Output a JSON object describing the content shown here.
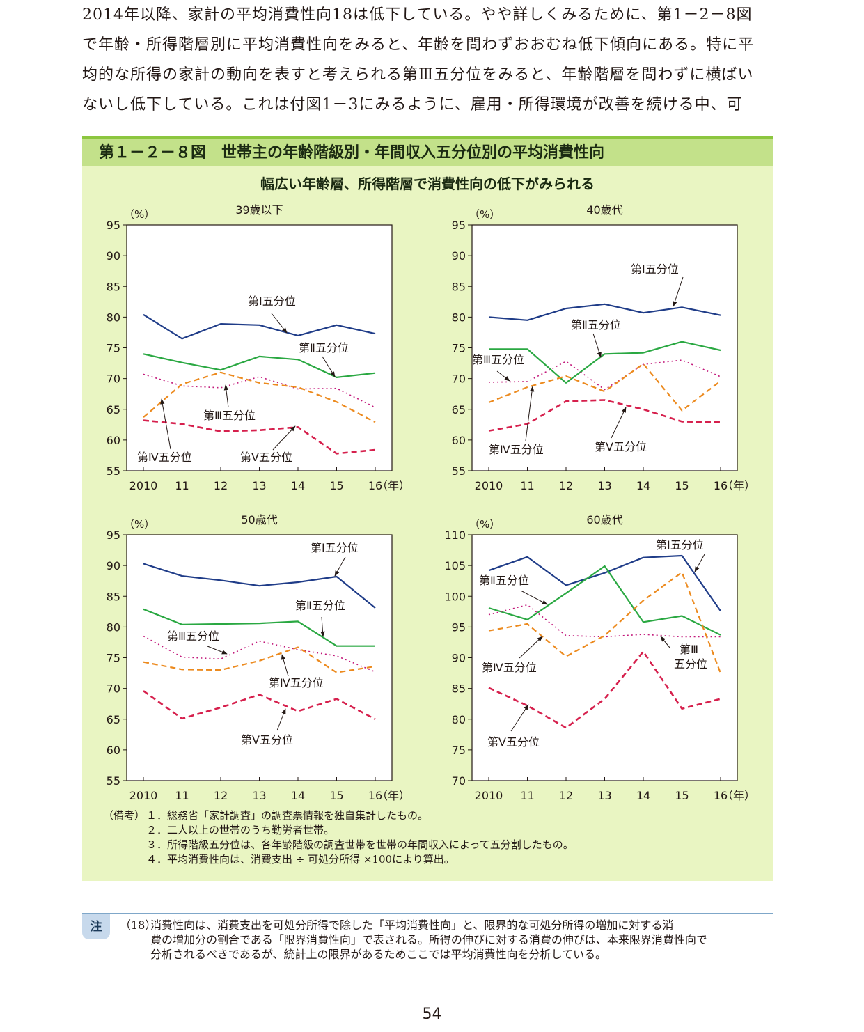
{
  "intro": {
    "lines": [
      "2014年以降、家計の平均消費性向18は低下している。やや詳しくみるために、第1－2－8図",
      "で年齢・所得階層別に平均消費性向をみると、年齢を問わずおおむね低下傾向にある。特に平",
      "均的な所得の家計の動向を表すと考えられる第Ⅲ五分位をみると、年齢階層を問わずに横ばい",
      "ないし低下している。これは付図1－3にみるように、雇用・所得環境が改善を続ける中、可"
    ]
  },
  "figure": {
    "title": "第１－２－８図　世帯主の年齢階級別・年間収入五分位別の平均消費性向",
    "subtitle": "幅広い年齢層、所得階層で消費性向の低下がみられる"
  },
  "colors": {
    "q1": "#1f3c88",
    "q2": "#2aa842",
    "q3": "#c2187a",
    "q4": "#ec8a1e",
    "q5": "#d6204d"
  },
  "chart_data": [
    {
      "type": "line",
      "title": "39歳以下",
      "ylabel": "（%）",
      "xlabel": "（年）",
      "categories": [
        "2010",
        "11",
        "12",
        "13",
        "14",
        "15",
        "16"
      ],
      "ylim": [
        55,
        95
      ],
      "yticks": [
        55,
        60,
        65,
        70,
        75,
        80,
        85,
        90,
        95
      ],
      "series": [
        {
          "name": "第Ⅰ五分位",
          "values": [
            80.4,
            76.5,
            78.9,
            78.7,
            77.0,
            78.7,
            77.3
          ]
        },
        {
          "name": "第Ⅱ五分位",
          "values": [
            74.0,
            72.6,
            71.4,
            73.6,
            73.1,
            70.2,
            70.9
          ]
        },
        {
          "name": "第Ⅲ五分位",
          "values": [
            70.7,
            68.8,
            68.5,
            70.3,
            68.3,
            68.4,
            65.3
          ]
        },
        {
          "name": "第Ⅳ五分位",
          "values": [
            63.7,
            69.1,
            71.0,
            69.3,
            68.6,
            66.2,
            62.9
          ]
        },
        {
          "name": "第Ⅴ五分位",
          "values": [
            63.2,
            62.6,
            61.4,
            61.6,
            62.1,
            57.8,
            58.4
          ]
        }
      ]
    },
    {
      "type": "line",
      "title": "40歳代",
      "ylabel": "（%）",
      "xlabel": "（年）",
      "categories": [
        "2010",
        "11",
        "12",
        "13",
        "14",
        "15",
        "16"
      ],
      "ylim": [
        55,
        95
      ],
      "yticks": [
        55,
        60,
        65,
        70,
        75,
        80,
        85,
        90,
        95
      ],
      "series": [
        {
          "name": "第Ⅰ五分位",
          "values": [
            80.0,
            79.5,
            81.4,
            82.1,
            80.7,
            81.6,
            80.3
          ]
        },
        {
          "name": "第Ⅱ五分位",
          "values": [
            74.8,
            74.8,
            69.3,
            74.0,
            74.2,
            76.0,
            74.6
          ]
        },
        {
          "name": "第Ⅲ五分位",
          "values": [
            69.4,
            69.5,
            72.8,
            68.2,
            72.3,
            73.0,
            70.3
          ]
        },
        {
          "name": "第Ⅳ五分位",
          "values": [
            66.1,
            68.6,
            70.4,
            67.9,
            72.4,
            64.8,
            69.6
          ]
        },
        {
          "name": "第Ⅴ五分位",
          "values": [
            61.5,
            62.6,
            66.3,
            66.5,
            65.0,
            63.0,
            62.9
          ]
        }
      ]
    },
    {
      "type": "line",
      "title": "50歳代",
      "ylabel": "（%）",
      "xlabel": "（年）",
      "categories": [
        "2010",
        "11",
        "12",
        "13",
        "14",
        "15",
        "16"
      ],
      "ylim": [
        55,
        95
      ],
      "yticks": [
        55,
        60,
        65,
        70,
        75,
        80,
        85,
        90,
        95
      ],
      "series": [
        {
          "name": "第Ⅰ五分位",
          "values": [
            90.3,
            88.3,
            87.6,
            86.7,
            87.3,
            88.2,
            83.1
          ]
        },
        {
          "name": "第Ⅱ五分位",
          "values": [
            82.9,
            80.4,
            80.5,
            80.6,
            80.9,
            76.9,
            76.9
          ]
        },
        {
          "name": "第Ⅲ五分位",
          "values": [
            78.5,
            75.1,
            74.8,
            77.7,
            76.3,
            75.3,
            72.7
          ]
        },
        {
          "name": "第Ⅳ五分位",
          "values": [
            74.3,
            73.1,
            73.0,
            74.5,
            76.7,
            72.6,
            73.6
          ]
        },
        {
          "name": "第Ⅴ五分位",
          "values": [
            69.6,
            65.1,
            66.9,
            69.0,
            66.3,
            68.3,
            65.0
          ]
        }
      ]
    },
    {
      "type": "line",
      "title": "60歳代",
      "ylabel": "（%）",
      "xlabel": "（年）",
      "categories": [
        "2010",
        "11",
        "12",
        "13",
        "14",
        "15",
        "16"
      ],
      "ylim": [
        70,
        110
      ],
      "yticks": [
        70,
        75,
        80,
        85,
        90,
        95,
        100,
        105,
        110
      ],
      "series": [
        {
          "name": "第Ⅰ五分位",
          "values": [
            104.2,
            106.4,
            101.8,
            103.8,
            106.3,
            106.6,
            97.6
          ]
        },
        {
          "name": "第Ⅱ五分位",
          "values": [
            98.1,
            96.2,
            100.5,
            104.9,
            95.8,
            96.8,
            93.7
          ]
        },
        {
          "name": "第Ⅲ五分位",
          "values": [
            97.0,
            98.6,
            93.6,
            93.4,
            93.8,
            93.4,
            93.4
          ]
        },
        {
          "name": "第Ⅳ五分位",
          "values": [
            94.4,
            95.5,
            90.2,
            93.6,
            99.3,
            103.9,
            87.5
          ]
        },
        {
          "name": "第Ⅴ五分位",
          "values": [
            85.1,
            82.2,
            78.6,
            83.3,
            91.0,
            81.7,
            83.3
          ]
        }
      ]
    }
  ],
  "notes": {
    "label": "（備考）",
    "items": [
      "１．総務省「家計調査」の調査票情報を独自集計したもの。",
      "２．二人以上の世帯のうち勤労者世帯。",
      "３．所得階級五分位は、各年齢階級の調査世帯を世帯の年間収入によって五分割したもの。",
      "４．平均消費性向は、消費支出 ÷ 可処分所得 ×100により算出。"
    ]
  },
  "footnote": {
    "badge": "注",
    "number": "（18）",
    "lines": [
      "消費性向は、消費支出を可処分所得で除した「平均消費性向」と、限界的な可処分所得の増加に対する消",
      "費の増加分の割合である「限界消費性向」で表される。所得の伸びに対する消費の伸びは、本来限界消費性向で",
      "分析されるべきであるが、統計上の限界があるためここでは平均消費性向を分析している。"
    ]
  },
  "page_number": "54"
}
